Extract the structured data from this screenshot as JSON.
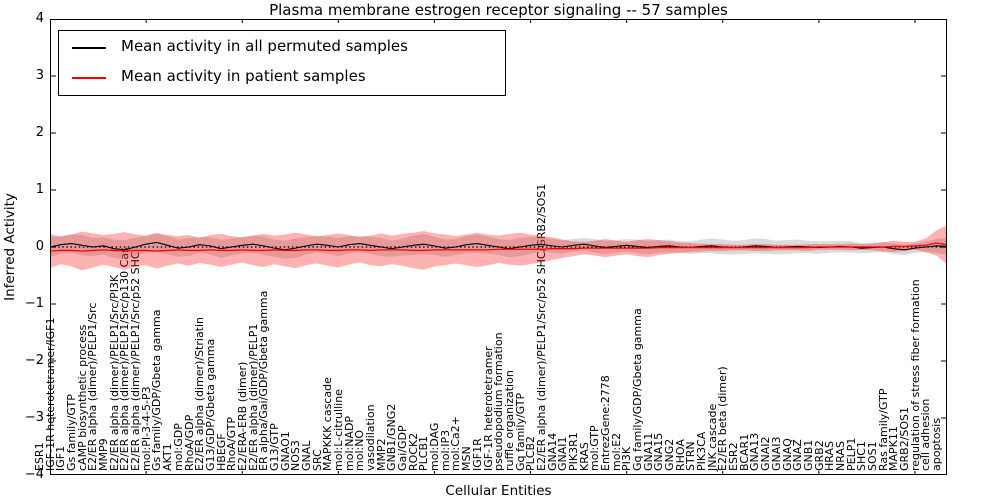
{
  "title": "Plasma membrane estrogen receptor signaling -- 57 samples",
  "legend": {
    "items": [
      {
        "label": "Mean activity in all permuted samples",
        "color": "#000000"
      },
      {
        "label": "Mean activity in patient samples",
        "color": "#ff0000"
      }
    ]
  },
  "axes": {
    "y_label": "Inferred Activity",
    "x_label": "Cellular Entities",
    "y_ticks": [
      4,
      3,
      2,
      1,
      0,
      -1,
      -2,
      -3,
      -4
    ],
    "y_min": -4,
    "y_max": 4
  },
  "chart_data": {
    "type": "line",
    "title": "Plasma membrane estrogen receptor signaling -- 57 samples",
    "xlabel": "Cellular Entities",
    "ylabel": "Inferred Activity",
    "ylim": [
      -4,
      4
    ],
    "grid": false,
    "legend_position": "upper left",
    "zero_line": {
      "style": "dotted",
      "color": "#000000",
      "y": 0
    },
    "categories": [
      "ESR1",
      "IGF-1R heterotetramer/IGF1",
      "IGF1",
      "Gs family/GTP",
      "cAMP biosynthetic process",
      "E2/ER alpha (dimer)/PELP1/Src",
      "MMP9",
      "E2/ER alpha (dimer)/PELP1/Src/PI3K",
      "E2/ER alpha (dimer)/PELP1/Src/p130 Cas",
      "E2/ER alpha (dimer)/PELP1/Src/p52 SHC",
      "mol:PI-3-4-5-P3",
      "Gs family/GDP/Gbeta gamma",
      "AKT1",
      "mol:GDP",
      "RhoA/GDP",
      "E2/ER alpha (dimer)/Striatin",
      "G13/GDP/Gbeta gamma",
      "HBEGF",
      "RhoA/GTP",
      "E2/ERA-ERB (dimer)",
      "E2/ER alpha (dimer)/PELP1",
      "ER alpha/Gai/GDP/Gbeta gamma",
      "G13/GTP",
      "GNAO1",
      "NOS3",
      "GNAL",
      "SRC",
      "MAPKKK cascade",
      "mol:L-citrulline",
      "mol:NADP",
      "mol:NO",
      "vasodilation",
      "MMP2",
      "GNB1/GNG2",
      "Gai/GDP",
      "ROCK2",
      "PLCB1",
      "mol:DAG",
      "mol:IP3",
      "mol:Ca2+",
      "MSN",
      "IGF1R",
      "IGF-1R heterotetramer",
      "pseudopodium formation",
      "ruffle organization",
      "Gq family/GTP",
      "PLCB2",
      "E2/ER alpha (dimer)/PELP1/Src/p52 SHC/GRB2/SOS1",
      "GNA14",
      "GNAI1",
      "PIK3R1",
      "KRAS",
      "mol:GTP",
      "EntrezGene:2778",
      "mol:E2",
      "PI3K",
      "Gq family/GDP/Gbeta gamma",
      "GNA11",
      "GNA15",
      "GNG2",
      "RHOA",
      "STRN",
      "PIK3CA",
      "JNK cascade",
      "E2/ER beta (dimer)",
      "ESR2",
      "BCAR1",
      "GNA13",
      "GNAI2",
      "GNAI3",
      "GNAQ",
      "GNAZ",
      "GNB1",
      "GRB2",
      "HRAS",
      "NRAS",
      "PELP1",
      "SHC1",
      "SOS1",
      "Ras family/GTP",
      "MAPK11",
      "GRB2/SOS1",
      "regulation of stress fiber formation",
      "cell adhesion",
      "apoptosis"
    ],
    "series": [
      {
        "name": "Mean activity in all permuted samples",
        "color": "#000000",
        "style": "solid",
        "values": [
          0.0,
          0.04,
          0.06,
          0.03,
          0.0,
          0.02,
          -0.03,
          -0.05,
          0.0,
          0.05,
          0.08,
          0.03,
          -0.02,
          0.0,
          0.04,
          0.02,
          -0.03,
          0.0,
          0.03,
          0.05,
          0.02,
          -0.02,
          -0.05,
          -0.02,
          0.02,
          0.05,
          0.03,
          0.0,
          0.04,
          0.06,
          0.03,
          0.0,
          -0.03,
          0.0,
          0.03,
          0.05,
          0.02,
          -0.02,
          0.0,
          0.04,
          0.06,
          0.03,
          0.0,
          -0.03,
          0.0,
          0.03,
          0.05,
          0.02,
          0.0,
          0.03,
          0.05,
          0.02,
          -0.01,
          0.01,
          0.03,
          0.01,
          -0.01,
          0.01,
          0.02,
          0.0,
          -0.01,
          0.01,
          0.02,
          0.0,
          -0.01,
          0.0,
          0.02,
          0.01,
          -0.01,
          0.0,
          0.01,
          0.0,
          -0.01,
          0.0,
          0.01,
          0.0,
          -0.02,
          -0.01,
          0.0,
          -0.03,
          -0.05,
          -0.02,
          0.0,
          0.02,
          0.01
        ]
      },
      {
        "name": "Mean activity in patient samples",
        "color": "#ff0000",
        "style": "solid",
        "values": [
          -0.07,
          -0.06,
          -0.06,
          -0.07,
          -0.06,
          -0.05,
          -0.06,
          -0.07,
          -0.06,
          -0.06,
          -0.07,
          -0.06,
          -0.05,
          -0.06,
          -0.06,
          -0.05,
          -0.06,
          -0.06,
          -0.05,
          -0.06,
          -0.06,
          -0.05,
          -0.06,
          -0.06,
          -0.05,
          -0.05,
          -0.06,
          -0.06,
          -0.05,
          -0.05,
          -0.06,
          -0.05,
          -0.05,
          -0.05,
          -0.06,
          -0.06,
          -0.05,
          -0.05,
          -0.05,
          -0.05,
          -0.05,
          -0.05,
          -0.04,
          -0.04,
          -0.04,
          -0.04,
          -0.04,
          -0.03,
          -0.03,
          -0.03,
          -0.02,
          -0.02,
          -0.02,
          -0.02,
          -0.02,
          -0.02,
          -0.02,
          -0.01,
          -0.01,
          -0.01,
          -0.01,
          -0.01,
          -0.01,
          -0.01,
          -0.01,
          -0.01,
          -0.01,
          -0.01,
          -0.01,
          -0.01,
          -0.01,
          -0.01,
          0.0,
          0.0,
          0.0,
          0.0,
          0.0,
          0.0,
          0.0,
          0.01,
          0.01,
          0.02,
          0.03,
          0.07,
          0.04
        ]
      },
      {
        "name": "Permuted samples std band",
        "type": "band",
        "center_index": 0,
        "color": "#999999",
        "opacity": 0.35,
        "half_widths": [
          0.18,
          0.15,
          0.16,
          0.18,
          0.16,
          0.15,
          0.16,
          0.17,
          0.16,
          0.15,
          0.17,
          0.16,
          0.15,
          0.16,
          0.14,
          0.15,
          0.16,
          0.15,
          0.14,
          0.15,
          0.16,
          0.15,
          0.16,
          0.17,
          0.15,
          0.14,
          0.15,
          0.16,
          0.15,
          0.14,
          0.15,
          0.16,
          0.14,
          0.15,
          0.17,
          0.18,
          0.16,
          0.15,
          0.14,
          0.15,
          0.16,
          0.15,
          0.14,
          0.15,
          0.16,
          0.15,
          0.13,
          0.12,
          0.12,
          0.11,
          0.11,
          0.12,
          0.12,
          0.11,
          0.11,
          0.12,
          0.12,
          0.11,
          0.11,
          0.1,
          0.11,
          0.12,
          0.13,
          0.13,
          0.12,
          0.12,
          0.13,
          0.13,
          0.12,
          0.12,
          0.12,
          0.11,
          0.11,
          0.1,
          0.1,
          0.1,
          0.09,
          0.09,
          0.09,
          0.09,
          0.09,
          0.08,
          0.09,
          0.12,
          0.15
        ]
      },
      {
        "name": "Patient samples std band",
        "type": "band",
        "center_index": 1,
        "color": "#ff0000",
        "opacity": 0.3,
        "half_widths": [
          0.3,
          0.24,
          0.28,
          0.34,
          0.3,
          0.26,
          0.29,
          0.33,
          0.28,
          0.26,
          0.31,
          0.27,
          0.24,
          0.27,
          0.22,
          0.26,
          0.29,
          0.25,
          0.22,
          0.26,
          0.29,
          0.25,
          0.28,
          0.31,
          0.27,
          0.24,
          0.27,
          0.3,
          0.26,
          0.22,
          0.26,
          0.29,
          0.25,
          0.28,
          0.31,
          0.34,
          0.29,
          0.27,
          0.24,
          0.27,
          0.3,
          0.27,
          0.24,
          0.27,
          0.29,
          0.26,
          0.23,
          0.2,
          0.16,
          0.13,
          0.11,
          0.13,
          0.16,
          0.13,
          0.11,
          0.14,
          0.16,
          0.13,
          0.11,
          0.09,
          0.08,
          0.07,
          0.06,
          0.06,
          0.05,
          0.05,
          0.06,
          0.06,
          0.05,
          0.05,
          0.05,
          0.06,
          0.05,
          0.05,
          0.05,
          0.06,
          0.05,
          0.06,
          0.08,
          0.1,
          0.08,
          0.07,
          0.12,
          0.22,
          0.34
        ]
      }
    ]
  }
}
